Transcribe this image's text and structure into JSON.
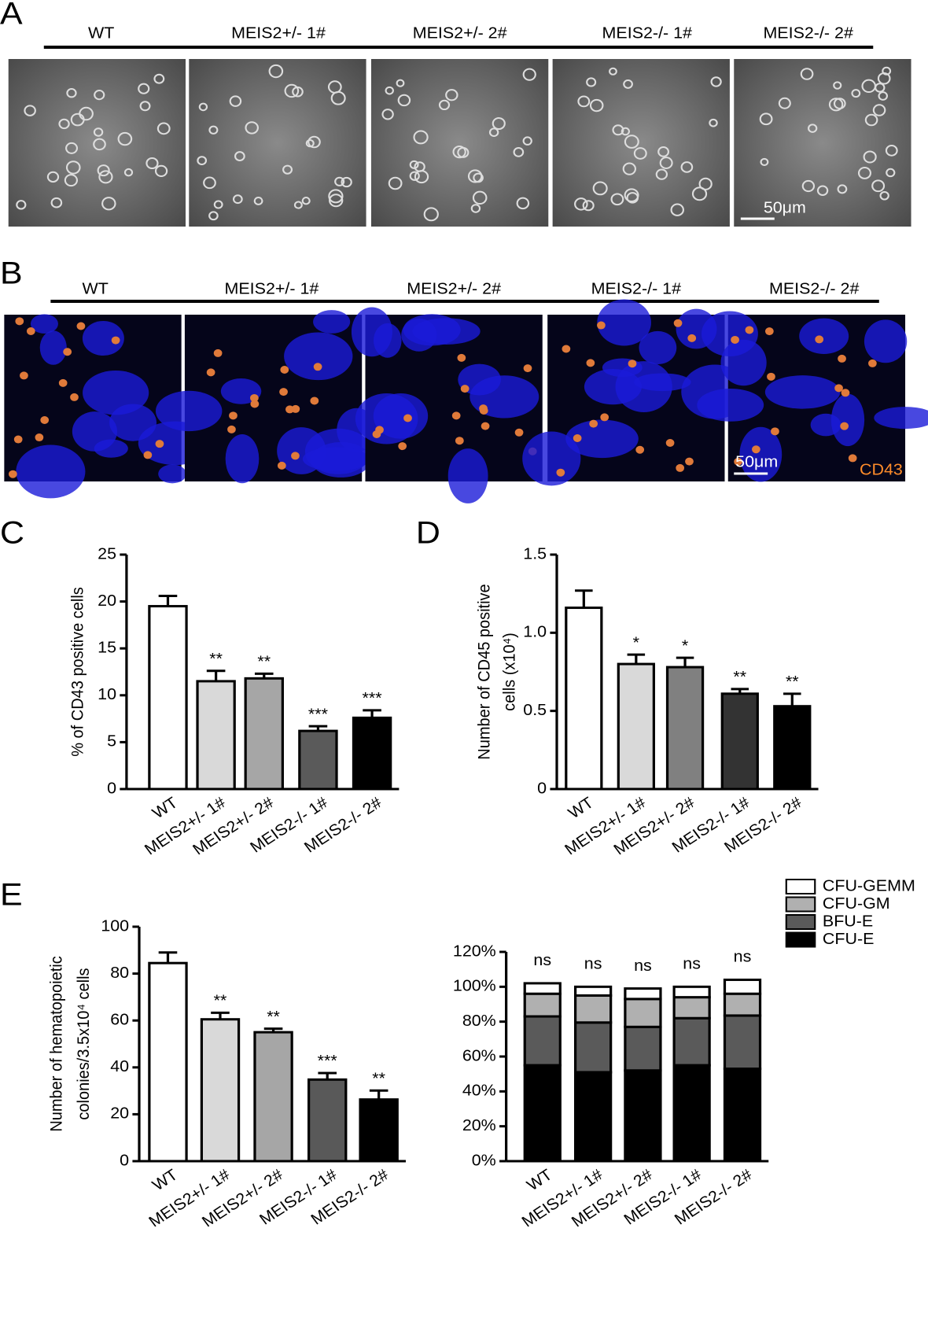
{
  "figure": {
    "A": {
      "label": "A",
      "headers": [
        "WT",
        "MEIS2+/- 1#",
        "MEIS2+/- 2#",
        "MEIS2-/- 1#",
        "MEIS2-/- 2#"
      ],
      "scale_bar": "50μm"
    },
    "B": {
      "label": "B",
      "headers": [
        "WT",
        "MEIS2+/- 1#",
        "MEIS2+/- 2#",
        "MEIS2-/- 1#",
        "MEIS2-/- 2#"
      ],
      "scale_bar": "50μm",
      "stain": "CD43"
    },
    "C": {
      "label": "C"
    },
    "D": {
      "label": "D"
    },
    "E": {
      "label": "E"
    }
  },
  "chart_data": [
    {
      "type": "bar",
      "ylabel": "% of CD43 positive cells",
      "categories": [
        "WT",
        "MEIS2+/- 1#",
        "MEIS2+/- 2#",
        "MEIS2-/- 1#",
        "MEIS2-/- 2#"
      ],
      "values": [
        19.5,
        11.5,
        11.8,
        6.2,
        7.6
      ],
      "errors": [
        1.1,
        1.1,
        0.5,
        0.5,
        0.8
      ],
      "significance": [
        null,
        "**",
        "**",
        "***",
        "***"
      ],
      "colors": [
        "#ffffff",
        "#d9d9d9",
        "#a6a6a6",
        "#5a5a5a",
        "#000000"
      ],
      "ylim": [
        0,
        25
      ],
      "yticks": [
        0,
        5,
        10,
        15,
        20,
        25
      ]
    },
    {
      "type": "bar",
      "ylabel": [
        "Number of CD45 positive",
        "cells (x10⁴)"
      ],
      "categories": [
        "WT",
        "MEIS2+/- 1#",
        "MEIS2+/- 2#",
        "MEIS2-/- 1#",
        "MEIS2-/- 2#"
      ],
      "values": [
        1.16,
        0.8,
        0.78,
        0.61,
        0.53
      ],
      "errors": [
        0.11,
        0.06,
        0.06,
        0.03,
        0.08
      ],
      "significance": [
        null,
        "*",
        "*",
        "**",
        "**"
      ],
      "colors": [
        "#ffffff",
        "#d9d9d9",
        "#808080",
        "#333333",
        "#000000"
      ],
      "ylim": [
        0,
        1.5
      ],
      "yticks": [
        0,
        0.5,
        {
          "value": 1,
          "label": "1.0"
        },
        1.5
      ]
    },
    {
      "type": "bar",
      "ylabel": [
        "Number of hematopoietic",
        "colonies/3.5x10⁴ cells"
      ],
      "categories": [
        "WT",
        "MEIS2+/- 1#",
        "MEIS2+/- 2#",
        "MEIS2-/- 1#",
        "MEIS2-/- 2#"
      ],
      "values": [
        84.5,
        60.5,
        55,
        34.8,
        26.3
      ],
      "errors": [
        4.5,
        2.8,
        1.5,
        2.8,
        3.8
      ],
      "significance": [
        null,
        "**",
        "**",
        "***",
        "**"
      ],
      "colors": [
        "#ffffff",
        "#d9d9d9",
        "#a6a6a6",
        "#595959",
        "#000000"
      ],
      "ylim": [
        0,
        100
      ],
      "yticks": [
        0,
        20,
        40,
        60,
        80,
        100
      ]
    },
    {
      "type": "stacked_bar",
      "categories": [
        "WT",
        "MEIS2+/- 1#",
        "MEIS2+/- 2#",
        "MEIS2-/- 1#",
        "MEIS2-/- 2#"
      ],
      "series": [
        {
          "name": "CFU-E",
          "color": "#000000",
          "values": [
            55,
            51,
            52,
            55,
            53
          ]
        },
        {
          "name": "BFU-E",
          "color": "#5a5a5a",
          "values": [
            28,
            28.5,
            25,
            27,
            30.5
          ]
        },
        {
          "name": "CFU-GM",
          "color": "#b0b0b0",
          "values": [
            13,
            15.5,
            16,
            12,
            12.5
          ]
        },
        {
          "name": "CFU-GEMM",
          "color": "#ffffff",
          "values": [
            6,
            5,
            6,
            6,
            8
          ]
        }
      ],
      "significance": [
        "ns",
        "ns",
        "ns",
        "ns",
        "ns"
      ],
      "ylim": [
        0,
        120
      ],
      "yticks": [
        {
          "value": 0,
          "label": "0%"
        },
        {
          "value": 20,
          "label": "20%"
        },
        {
          "value": 40,
          "label": "40%"
        },
        {
          "value": 60,
          "label": "60%"
        },
        {
          "value": 80,
          "label": "80%"
        },
        {
          "value": 100,
          "label": "100%"
        },
        {
          "value": 120,
          "label": "120%"
        }
      ]
    }
  ]
}
